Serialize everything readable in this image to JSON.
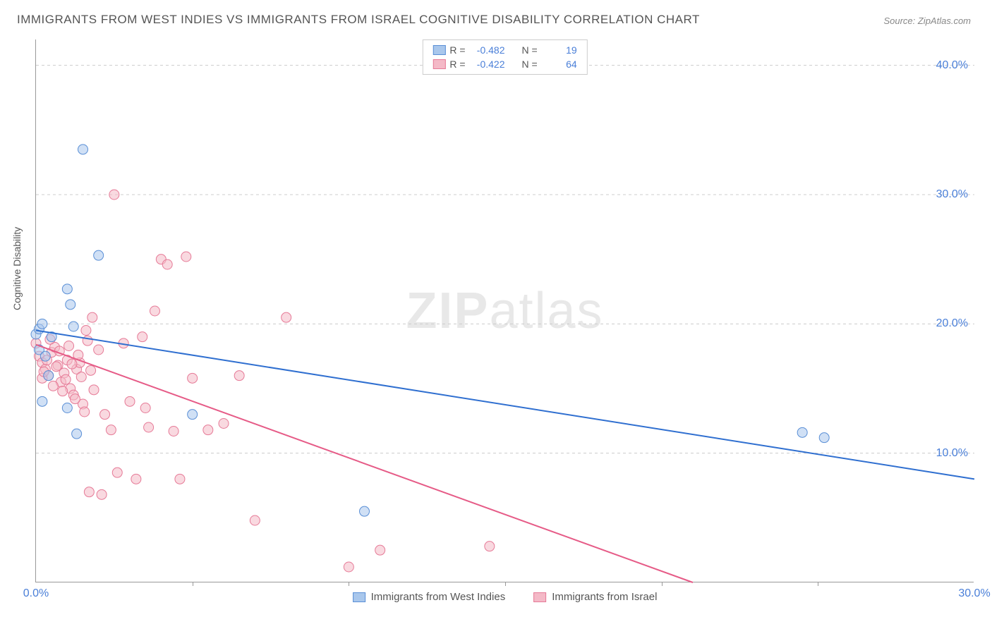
{
  "title": "IMMIGRANTS FROM WEST INDIES VS IMMIGRANTS FROM ISRAEL COGNITIVE DISABILITY CORRELATION CHART",
  "source": "Source: ZipAtlas.com",
  "ylabel": "Cognitive Disability",
  "watermark_text": "ZIPatlas",
  "chart": {
    "type": "scatter",
    "xlim": [
      0,
      30
    ],
    "ylim": [
      0,
      42
    ],
    "ytick_values": [
      10,
      20,
      30,
      40
    ],
    "ytick_labels": [
      "10.0%",
      "20.0%",
      "30.0%",
      "40.0%"
    ],
    "xtick_values": [
      0,
      30
    ],
    "xtick_labels": [
      "0.0%",
      "30.0%"
    ],
    "xtick_minor": [
      5,
      10,
      15,
      20,
      25
    ],
    "grid_color": "#cccccc",
    "axis_color": "#999999",
    "background_color": "#ffffff",
    "tick_label_color": "#4a7fd8",
    "marker_radius": 7,
    "marker_opacity": 0.55,
    "line_width": 2,
    "series": [
      {
        "name": "Immigrants from West Indies",
        "fill_color": "#a9c7ec",
        "stroke_color": "#5a8fd6",
        "line_color": "#2f6fd0",
        "r_value": "-0.482",
        "n_value": "19",
        "trend": {
          "x1": 0,
          "y1": 19.5,
          "x2": 30,
          "y2": 8.0
        },
        "points": [
          {
            "x": 0.0,
            "y": 19.2
          },
          {
            "x": 0.1,
            "y": 19.6
          },
          {
            "x": 0.2,
            "y": 20.0
          },
          {
            "x": 0.1,
            "y": 18.0
          },
          {
            "x": 1.0,
            "y": 22.7
          },
          {
            "x": 1.1,
            "y": 21.5
          },
          {
            "x": 1.5,
            "y": 33.5
          },
          {
            "x": 2.0,
            "y": 25.3
          },
          {
            "x": 1.2,
            "y": 19.8
          },
          {
            "x": 1.3,
            "y": 11.5
          },
          {
            "x": 1.0,
            "y": 13.5
          },
          {
            "x": 5.0,
            "y": 13.0
          },
          {
            "x": 0.3,
            "y": 17.5
          },
          {
            "x": 0.4,
            "y": 16.0
          },
          {
            "x": 0.2,
            "y": 14.0
          },
          {
            "x": 10.5,
            "y": 5.5
          },
          {
            "x": 24.5,
            "y": 11.6
          },
          {
            "x": 25.2,
            "y": 11.2
          },
          {
            "x": 0.5,
            "y": 19.0
          }
        ]
      },
      {
        "name": "Immigrants from Israel",
        "fill_color": "#f4b9c7",
        "stroke_color": "#e67a97",
        "line_color": "#e65b87",
        "r_value": "-0.422",
        "n_value": "64",
        "trend": {
          "x1": 0,
          "y1": 18.4,
          "x2": 21,
          "y2": 0
        },
        "points": [
          {
            "x": 0.0,
            "y": 18.5
          },
          {
            "x": 0.1,
            "y": 17.5
          },
          {
            "x": 0.2,
            "y": 17.0
          },
          {
            "x": 0.3,
            "y": 16.5
          },
          {
            "x": 0.4,
            "y": 16.0
          },
          {
            "x": 0.5,
            "y": 17.8
          },
          {
            "x": 0.6,
            "y": 18.2
          },
          {
            "x": 0.7,
            "y": 16.8
          },
          {
            "x": 0.8,
            "y": 15.5
          },
          {
            "x": 0.9,
            "y": 16.2
          },
          {
            "x": 1.0,
            "y": 17.2
          },
          {
            "x": 1.1,
            "y": 15.0
          },
          {
            "x": 1.2,
            "y": 14.5
          },
          {
            "x": 1.3,
            "y": 16.5
          },
          {
            "x": 1.4,
            "y": 17.0
          },
          {
            "x": 1.5,
            "y": 13.8
          },
          {
            "x": 1.6,
            "y": 19.5
          },
          {
            "x": 1.8,
            "y": 20.5
          },
          {
            "x": 2.0,
            "y": 18.0
          },
          {
            "x": 2.2,
            "y": 13.0
          },
          {
            "x": 2.4,
            "y": 11.8
          },
          {
            "x": 2.5,
            "y": 30.0
          },
          {
            "x": 2.6,
            "y": 8.5
          },
          {
            "x": 2.8,
            "y": 18.5
          },
          {
            "x": 3.0,
            "y": 14.0
          },
          {
            "x": 3.2,
            "y": 8.0
          },
          {
            "x": 3.4,
            "y": 19.0
          },
          {
            "x": 3.5,
            "y": 13.5
          },
          {
            "x": 3.6,
            "y": 12.0
          },
          {
            "x": 3.8,
            "y": 21.0
          },
          {
            "x": 4.0,
            "y": 25.0
          },
          {
            "x": 4.2,
            "y": 24.6
          },
          {
            "x": 4.4,
            "y": 11.7
          },
          {
            "x": 4.6,
            "y": 8.0
          },
          {
            "x": 4.8,
            "y": 25.2
          },
          {
            "x": 5.0,
            "y": 15.8
          },
          {
            "x": 5.5,
            "y": 11.8
          },
          {
            "x": 6.0,
            "y": 12.3
          },
          {
            "x": 6.5,
            "y": 16.0
          },
          {
            "x": 7.0,
            "y": 4.8
          },
          {
            "x": 8.0,
            "y": 20.5
          },
          {
            "x": 10.0,
            "y": 1.2
          },
          {
            "x": 11.0,
            "y": 2.5
          },
          {
            "x": 14.5,
            "y": 2.8
          },
          {
            "x": 1.7,
            "y": 7.0
          },
          {
            "x": 2.1,
            "y": 6.8
          },
          {
            "x": 0.2,
            "y": 15.8
          },
          {
            "x": 0.25,
            "y": 16.3
          },
          {
            "x": 0.35,
            "y": 17.2
          },
          {
            "x": 0.45,
            "y": 18.8
          },
          {
            "x": 0.55,
            "y": 15.2
          },
          {
            "x": 0.65,
            "y": 16.7
          },
          {
            "x": 0.75,
            "y": 17.9
          },
          {
            "x": 0.85,
            "y": 14.8
          },
          {
            "x": 0.95,
            "y": 15.7
          },
          {
            "x": 1.05,
            "y": 18.3
          },
          {
            "x": 1.15,
            "y": 16.9
          },
          {
            "x": 1.25,
            "y": 14.2
          },
          {
            "x": 1.35,
            "y": 17.6
          },
          {
            "x": 1.45,
            "y": 15.9
          },
          {
            "x": 1.55,
            "y": 13.2
          },
          {
            "x": 1.65,
            "y": 18.7
          },
          {
            "x": 1.75,
            "y": 16.4
          },
          {
            "x": 1.85,
            "y": 14.9
          }
        ]
      }
    ]
  },
  "legend_bottom": [
    {
      "label": "Immigrants from West Indies",
      "fill": "#a9c7ec",
      "stroke": "#5a8fd6"
    },
    {
      "label": "Immigrants from Israel",
      "fill": "#f4b9c7",
      "stroke": "#e67a97"
    }
  ]
}
